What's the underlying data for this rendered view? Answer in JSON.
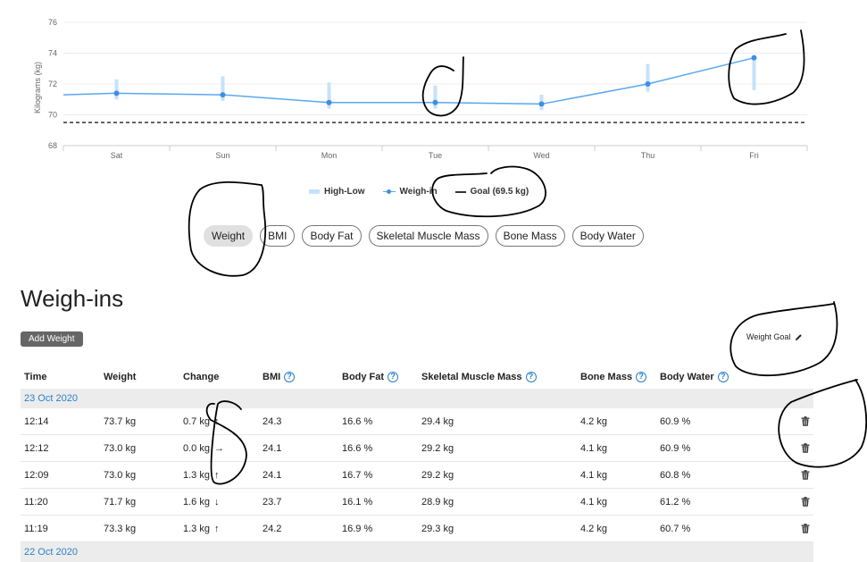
{
  "chart": {
    "y_axis_label": "Kilograms (kg)",
    "legend": {
      "high_low": "High-Low",
      "weigh_in": "Weigh-in",
      "goal": "Goal (69.5 kg)"
    },
    "colors": {
      "line": "#5ba7ef",
      "point": "#3d8fe6",
      "range_bar": "#c6e2fb",
      "goal": "#333333"
    }
  },
  "chart_data": {
    "type": "line",
    "categories": [
      "Sat",
      "Sun",
      "Mon",
      "Tue",
      "Wed",
      "Thu",
      "Fri"
    ],
    "y_ticks": [
      68,
      70,
      72,
      74,
      76
    ],
    "ylabel": "Kilograms (kg)",
    "ylim": [
      68,
      76
    ],
    "goal": 69.5,
    "series": [
      {
        "name": "Weigh-in",
        "values": [
          71.4,
          71.3,
          70.8,
          70.8,
          70.7,
          72.0,
          73.7
        ]
      },
      {
        "name": "High-Low",
        "low": [
          71.0,
          70.9,
          70.4,
          70.4,
          70.3,
          71.5,
          71.6
        ],
        "high": [
          72.3,
          72.5,
          72.1,
          71.9,
          71.3,
          73.3,
          73.7
        ]
      }
    ],
    "grid": true,
    "legend_position": "bottom"
  },
  "pills": [
    {
      "label": "Weight",
      "active": true
    },
    {
      "label": "BMI",
      "active": false
    },
    {
      "label": "Body Fat",
      "active": false
    },
    {
      "label": "Skeletal Muscle Mass",
      "active": false
    },
    {
      "label": "Bone Mass",
      "active": false
    },
    {
      "label": "Body Water",
      "active": false
    }
  ],
  "section": {
    "title": "Weigh-ins",
    "add_button": "Add Weight",
    "goal_button": "Weight Goal"
  },
  "table": {
    "headers": {
      "time": "Time",
      "weight": "Weight",
      "change": "Change",
      "bmi": "BMI",
      "body_fat": "Body Fat",
      "smm": "Skeletal Muscle Mass",
      "bone": "Bone Mass",
      "water": "Body Water"
    },
    "groups": [
      {
        "date": "23 Oct 2020"
      },
      {
        "date": "22 Oct 2020"
      }
    ],
    "rows": [
      {
        "time": "12:14",
        "weight": "73.7 kg",
        "change": "0.7 kg",
        "dir": "↑",
        "bmi": "24.3",
        "fat": "16.6 %",
        "smm": "29.4 kg",
        "bone": "4.2 kg",
        "water": "60.9 %"
      },
      {
        "time": "12:12",
        "weight": "73.0 kg",
        "change": "0.0 kg",
        "dir": "→",
        "bmi": "24.1",
        "fat": "16.6 %",
        "smm": "29.2 kg",
        "bone": "4.1 kg",
        "water": "60.9 %"
      },
      {
        "time": "12:09",
        "weight": "73.0 kg",
        "change": "1.3 kg",
        "dir": "↑",
        "bmi": "24.1",
        "fat": "16.7 %",
        "smm": "29.2 kg",
        "bone": "4.1 kg",
        "water": "60.8 %"
      },
      {
        "time": "11:20",
        "weight": "71.7 kg",
        "change": "1.6 kg",
        "dir": "↓",
        "bmi": "23.7",
        "fat": "16.1 %",
        "smm": "28.9 kg",
        "bone": "4.1 kg",
        "water": "61.2 %"
      },
      {
        "time": "11:19",
        "weight": "73.3 kg",
        "change": "1.3 kg",
        "dir": "↑",
        "bmi": "24.2",
        "fat": "16.9 %",
        "smm": "29.3 kg",
        "bone": "4.2 kg",
        "water": "60.7 %"
      }
    ],
    "help_icon": "help-circle-icon",
    "delete_icon": "trash-icon"
  }
}
